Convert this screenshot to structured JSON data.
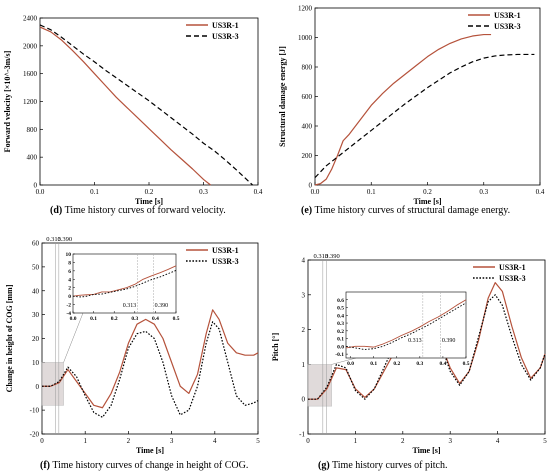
{
  "colors": {
    "us3r1": "#b5523b",
    "us3r3": "#000000",
    "inset_box": "#b8b8b8"
  },
  "legend": {
    "a": "US3R-1",
    "b": "US3R-3"
  },
  "captions": {
    "d": {
      "tag": "(d)",
      "text": "Time history curves of forward velocity."
    },
    "e": {
      "tag": "(e)",
      "text": "Time history curves of structural damage energy."
    },
    "f": {
      "tag": "(f)",
      "text": "Time history curves of change in height of COG."
    },
    "g": {
      "tag": "(g)",
      "text": "Time history curves of pitch."
    }
  },
  "chart_data": [
    {
      "id": "d",
      "type": "line",
      "xlabel": "Time [s]",
      "ylabel": "Forward velocity [×10^-3m/s]",
      "xlim": [
        0,
        0.4
      ],
      "ylim": [
        0,
        2400
      ],
      "xticks": [
        "0.0",
        "0.1",
        "0.2",
        "0.3",
        "0.4"
      ],
      "yticks": [
        "0",
        "400",
        "800",
        "1200",
        "1600",
        "2000",
        "2400"
      ],
      "xtick_values": [
        0,
        0.1,
        0.2,
        0.3,
        0.4
      ],
      "ytick_values": [
        0,
        400,
        800,
        1200,
        1600,
        2000,
        2400
      ],
      "legend_position": "top-right",
      "series": [
        {
          "name": "US3R-1",
          "style": "solid",
          "x": [
            0,
            0.02,
            0.04,
            0.06,
            0.08,
            0.1,
            0.12,
            0.14,
            0.16,
            0.18,
            0.2,
            0.22,
            0.24,
            0.26,
            0.28,
            0.3,
            0.313
          ],
          "y": [
            2270,
            2200,
            2080,
            1930,
            1770,
            1600,
            1430,
            1260,
            1110,
            960,
            810,
            660,
            510,
            370,
            230,
            80,
            0
          ]
        },
        {
          "name": "US3R-3",
          "style": "dashed",
          "x": [
            0,
            0.02,
            0.04,
            0.06,
            0.08,
            0.1,
            0.12,
            0.14,
            0.16,
            0.18,
            0.2,
            0.22,
            0.24,
            0.26,
            0.28,
            0.3,
            0.32,
            0.34,
            0.36,
            0.39
          ],
          "y": [
            2300,
            2230,
            2120,
            2000,
            1880,
            1770,
            1650,
            1540,
            1430,
            1320,
            1210,
            1090,
            970,
            850,
            730,
            600,
            490,
            360,
            220,
            0
          ]
        }
      ]
    },
    {
      "id": "e",
      "type": "line",
      "xlabel": "Time [s]",
      "ylabel": "Structural damage energy [J]",
      "xlim": [
        0,
        0.4
      ],
      "ylim": [
        0,
        1200
      ],
      "xticks": [
        "0.0",
        "0.1",
        "0.2",
        "0.3",
        "0.4"
      ],
      "yticks": [
        "0",
        "200",
        "400",
        "600",
        "800",
        "1000",
        "1200"
      ],
      "xtick_values": [
        0,
        0.1,
        0.2,
        0.3,
        0.4
      ],
      "ytick_values": [
        0,
        200,
        400,
        600,
        800,
        1000,
        1200
      ],
      "legend_position": "top-right",
      "series": [
        {
          "name": "US3R-1",
          "style": "solid",
          "x": [
            0,
            0.01,
            0.02,
            0.03,
            0.04,
            0.05,
            0.06,
            0.08,
            0.1,
            0.12,
            0.14,
            0.16,
            0.18,
            0.2,
            0.22,
            0.24,
            0.26,
            0.28,
            0.3,
            0.313
          ],
          "y": [
            0,
            10,
            40,
            110,
            200,
            300,
            340,
            440,
            540,
            620,
            690,
            750,
            810,
            870,
            920,
            960,
            990,
            1010,
            1020,
            1020
          ]
        },
        {
          "name": "US3R-3",
          "style": "dashed",
          "x": [
            0,
            0.02,
            0.04,
            0.06,
            0.08,
            0.1,
            0.12,
            0.14,
            0.16,
            0.18,
            0.2,
            0.22,
            0.24,
            0.26,
            0.28,
            0.3,
            0.32,
            0.34,
            0.36,
            0.38,
            0.39
          ],
          "y": [
            50,
            130,
            190,
            250,
            310,
            370,
            430,
            490,
            550,
            605,
            660,
            710,
            760,
            800,
            835,
            860,
            875,
            882,
            885,
            885,
            885
          ]
        }
      ]
    },
    {
      "id": "f",
      "type": "line",
      "xlabel": "Time [s]",
      "ylabel": "Change in height of COG [mm]",
      "xlim": [
        0,
        5
      ],
      "ylim": [
        -20,
        60
      ],
      "xticks": [
        "0",
        "1",
        "2",
        "3",
        "4",
        "5"
      ],
      "yticks": [
        "-20",
        "-10",
        "0",
        "10",
        "20",
        "30",
        "40",
        "50",
        "60"
      ],
      "xtick_values": [
        0,
        1,
        2,
        3,
        4,
        5
      ],
      "ytick_values": [
        -20,
        -10,
        0,
        10,
        20,
        30,
        40,
        50,
        60
      ],
      "legend_position": "top-right",
      "markers": [
        "0.313",
        "0.390"
      ],
      "marker_values": [
        0.313,
        0.39
      ],
      "series": [
        {
          "name": "US3R-1",
          "style": "solid",
          "x": [
            0,
            0.2,
            0.4,
            0.6,
            0.8,
            1.0,
            1.2,
            1.4,
            1.6,
            1.8,
            2.0,
            2.2,
            2.4,
            2.6,
            2.8,
            3.0,
            3.2,
            3.4,
            3.6,
            3.8,
            3.95,
            4.1,
            4.3,
            4.5,
            4.7,
            4.9,
            5.0
          ],
          "y": [
            0,
            0,
            1.5,
            7,
            2,
            -3,
            -8,
            -9,
            -3,
            6,
            18,
            26,
            28,
            26,
            20,
            10,
            0,
            -3,
            5,
            22,
            32,
            28,
            18,
            14,
            13,
            13,
            14
          ]
        },
        {
          "name": "US3R-3",
          "style": "dotted",
          "x": [
            0,
            0.2,
            0.4,
            0.6,
            0.8,
            1.0,
            1.2,
            1.4,
            1.6,
            1.8,
            2.0,
            2.2,
            2.4,
            2.6,
            2.8,
            3.0,
            3.2,
            3.4,
            3.6,
            3.8,
            3.95,
            4.1,
            4.3,
            4.5,
            4.7,
            4.9,
            5.0
          ],
          "y": [
            0,
            0,
            2,
            8,
            4,
            -4,
            -11,
            -13,
            -8,
            3,
            16,
            22,
            23,
            20,
            10,
            -4,
            -12,
            -10,
            0,
            18,
            27,
            24,
            10,
            -4,
            -8,
            -7,
            -6
          ]
        }
      ],
      "inset": {
        "xlim": [
          0,
          0.5
        ],
        "ylim": [
          -4,
          10
        ],
        "xticks": [
          "0.0",
          "0.1",
          "0.2",
          "0.3",
          "0.4",
          "0.5"
        ],
        "yticks": [
          "-4",
          "-2",
          "0",
          "2",
          "4",
          "6",
          "8",
          "10"
        ],
        "xtick_values": [
          0,
          0.1,
          0.2,
          0.3,
          0.4,
          0.5
        ],
        "ytick_values": [
          -4,
          -2,
          0,
          2,
          4,
          6,
          8,
          10
        ],
        "markers": [
          "0.313",
          "0.390"
        ],
        "marker_values": [
          0.313,
          0.39
        ],
        "series": [
          {
            "name": "US3R-1",
            "style": "solid",
            "x": [
              0,
              0.03,
              0.06,
              0.1,
              0.14,
              0.18,
              0.22,
              0.26,
              0.3,
              0.34,
              0.38,
              0.42,
              0.46,
              0.5
            ],
            "y": [
              0,
              0.2,
              0.3,
              0.4,
              1,
              1,
              1.5,
              2,
              2.8,
              4,
              4.8,
              5.5,
              6.3,
              7.2
            ]
          },
          {
            "name": "US3R-3",
            "style": "dotted",
            "x": [
              0,
              0.03,
              0.06,
              0.1,
              0.14,
              0.18,
              0.22,
              0.26,
              0.3,
              0.34,
              0.38,
              0.42,
              0.46,
              0.5
            ],
            "y": [
              0,
              -0.2,
              -0.1,
              0.4,
              0.5,
              0.9,
              1.3,
              1.7,
              2.3,
              3.1,
              3.9,
              4.5,
              5.3,
              6.1
            ]
          }
        ]
      }
    },
    {
      "id": "g",
      "type": "line",
      "xlabel": "Time [s]",
      "ylabel": "Pitch [°]",
      "xlim": [
        0,
        5
      ],
      "ylim": [
        -1,
        4
      ],
      "xticks": [
        "0",
        "1",
        "2",
        "3",
        "4",
        "5"
      ],
      "yticks": [
        "-1",
        "0",
        "1",
        "2",
        "3",
        "4"
      ],
      "xtick_values": [
        0,
        1,
        2,
        3,
        4,
        5
      ],
      "ytick_values": [
        -1,
        0,
        1,
        2,
        3,
        4
      ],
      "legend_position": "top-right",
      "markers": [
        "0.313",
        "0.390"
      ],
      "marker_values": [
        0.313,
        0.39
      ],
      "series": [
        {
          "name": "US3R-1",
          "style": "solid",
          "x": [
            0,
            0.2,
            0.4,
            0.6,
            0.8,
            1.0,
            1.2,
            1.4,
            1.6,
            1.8,
            2.0,
            2.2,
            2.4,
            2.6,
            2.8,
            3.0,
            3.2,
            3.4,
            3.6,
            3.8,
            3.95,
            4.1,
            4.3,
            4.5,
            4.7,
            4.9,
            5.0
          ],
          "y": [
            0,
            0,
            0.3,
            0.9,
            0.85,
            0.3,
            0.05,
            0.3,
            0.8,
            1.3,
            1.9,
            2.35,
            2.45,
            2.2,
            1.6,
            0.9,
            0.45,
            0.8,
            1.7,
            2.9,
            3.35,
            3.1,
            2.1,
            1.2,
            0.6,
            0.9,
            1.3
          ]
        },
        {
          "name": "US3R-3",
          "style": "dotted",
          "x": [
            0,
            0.2,
            0.4,
            0.6,
            0.8,
            1.0,
            1.2,
            1.4,
            1.6,
            1.8,
            2.0,
            2.2,
            2.4,
            2.6,
            2.8,
            3.0,
            3.2,
            3.4,
            3.6,
            3.8,
            3.95,
            4.1,
            4.3,
            4.5,
            4.7,
            4.9,
            5.0
          ],
          "y": [
            0,
            0,
            0.35,
            1.0,
            0.9,
            0.25,
            0.0,
            0.3,
            0.9,
            1.5,
            2.2,
            2.6,
            2.6,
            2.3,
            1.6,
            0.8,
            0.4,
            0.8,
            1.8,
            2.8,
            3.0,
            2.7,
            1.8,
            1.0,
            0.55,
            0.9,
            1.3
          ]
        }
      ],
      "inset": {
        "xlim": [
          -0.02,
          0.5
        ],
        "ylim": [
          -0.15,
          0.7
        ],
        "xticks": [
          "0.0",
          "0.1",
          "0.2",
          "0.3",
          "0.4",
          "0.5"
        ],
        "yticks": [
          "-0.1",
          "0.0",
          "0.1",
          "0.2",
          "0.3",
          "0.4",
          "0.5",
          "0.6"
        ],
        "xtick_values": [
          0,
          0.1,
          0.2,
          0.3,
          0.4,
          0.5
        ],
        "ytick_values": [
          -0.1,
          0,
          0.1,
          0.2,
          0.3,
          0.4,
          0.5,
          0.6
        ],
        "markers": [
          "0.313",
          "0.390"
        ],
        "marker_values": [
          0.313,
          0.39
        ],
        "series": [
          {
            "name": "US3R-1",
            "style": "solid",
            "x": [
              -0.02,
              0.02,
              0.06,
              0.1,
              0.14,
              0.18,
              0.22,
              0.26,
              0.3,
              0.34,
              0.38,
              0.42,
              0.46,
              0.5
            ],
            "y": [
              -0.02,
              0.0,
              0.0,
              -0.01,
              0.03,
              0.08,
              0.14,
              0.19,
              0.25,
              0.32,
              0.38,
              0.45,
              0.53,
              0.6
            ]
          },
          {
            "name": "US3R-3",
            "style": "dotted",
            "x": [
              -0.02,
              0.02,
              0.06,
              0.1,
              0.14,
              0.18,
              0.22,
              0.26,
              0.3,
              0.34,
              0.38,
              0.42,
              0.46,
              0.5
            ],
            "y": [
              0.0,
              -0.02,
              -0.04,
              -0.03,
              0.0,
              0.05,
              0.11,
              0.16,
              0.22,
              0.28,
              0.35,
              0.42,
              0.49,
              0.56
            ]
          }
        ]
      }
    }
  ]
}
